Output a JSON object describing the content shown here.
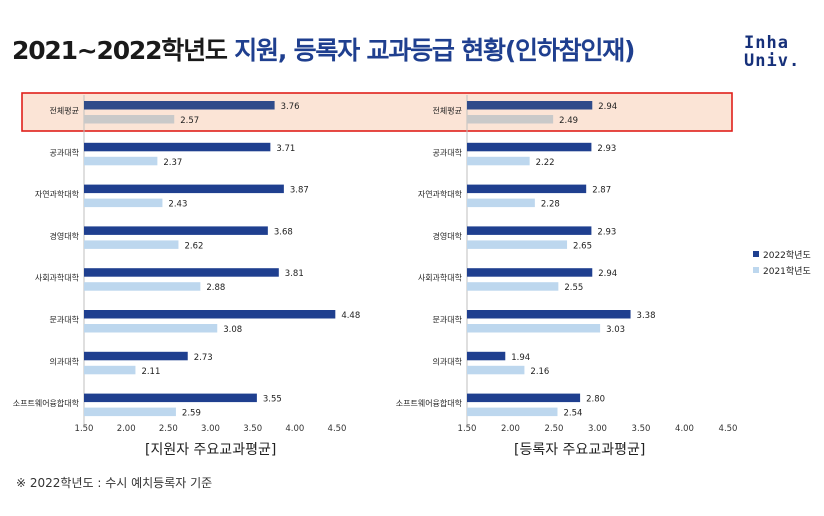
{
  "title": {
    "prefix": "2021~2022학년도",
    "main": " 지원, 등록자 교과등급 현황(인하참인재)"
  },
  "logo": {
    "line1": "Inha",
    "line2": "Univ."
  },
  "colors": {
    "series_2022": "#1f3f8f",
    "series_2021": "#bdd7ee",
    "overall_2021": "#c9c9c9",
    "highlight_fill": "#fbe4d6",
    "highlight_border": "#e0201b"
  },
  "legend": {
    "items": [
      "2022학년도",
      "2021학년도"
    ]
  },
  "footnote": "※ 2022학년도 : 수시 예치등록자 기준",
  "chart_data": [
    {
      "type": "bar",
      "orientation": "horizontal",
      "title": "[지원자 주요교과평균]",
      "categories": [
        "전체평균",
        "공과대학",
        "자연과학대학",
        "경영대학",
        "사회과학대학",
        "문과대학",
        "의과대학",
        "소프트웨어융합대학"
      ],
      "series": [
        {
          "name": "2022학년도",
          "values": [
            3.76,
            3.71,
            3.87,
            3.68,
            3.81,
            4.48,
            2.73,
            3.55
          ]
        },
        {
          "name": "2021학년도",
          "values": [
            2.57,
            2.37,
            2.43,
            2.62,
            2.88,
            3.08,
            2.11,
            2.59
          ]
        }
      ],
      "xlim": [
        1.5,
        4.5
      ],
      "ticks": [
        "1.50",
        "2.00",
        "2.50",
        "3.00",
        "3.50",
        "4.00",
        "4.50"
      ],
      "highlighted_category": "전체평균"
    },
    {
      "type": "bar",
      "orientation": "horizontal",
      "title": "[등록자 주요교과평균]",
      "categories": [
        "전체평균",
        "공과대학",
        "자연과학대학",
        "경영대학",
        "사회과학대학",
        "문과대학",
        "의과대학",
        "소프트웨어융합대학"
      ],
      "series": [
        {
          "name": "2022학년도",
          "values": [
            2.94,
            2.93,
            2.87,
            2.93,
            2.94,
            3.38,
            1.94,
            2.8
          ]
        },
        {
          "name": "2021학년도",
          "values": [
            2.49,
            2.22,
            2.28,
            2.65,
            2.55,
            3.03,
            2.16,
            2.54
          ]
        }
      ],
      "value_labels": [
        [
          "2.94",
          "2.93",
          "2.87",
          "2.93",
          "2.94",
          "3.38",
          "1.94",
          "2.80"
        ],
        [
          "2.49",
          "2.22",
          "2.28",
          "2.65",
          "2.55",
          "3.03",
          "2.16",
          "2.54"
        ]
      ],
      "xlim": [
        1.5,
        4.5
      ],
      "ticks": [
        "1.50",
        "2.00",
        "2.50",
        "3.00",
        "3.50",
        "4.00",
        "4.50"
      ],
      "highlighted_category": "전체평균"
    }
  ]
}
